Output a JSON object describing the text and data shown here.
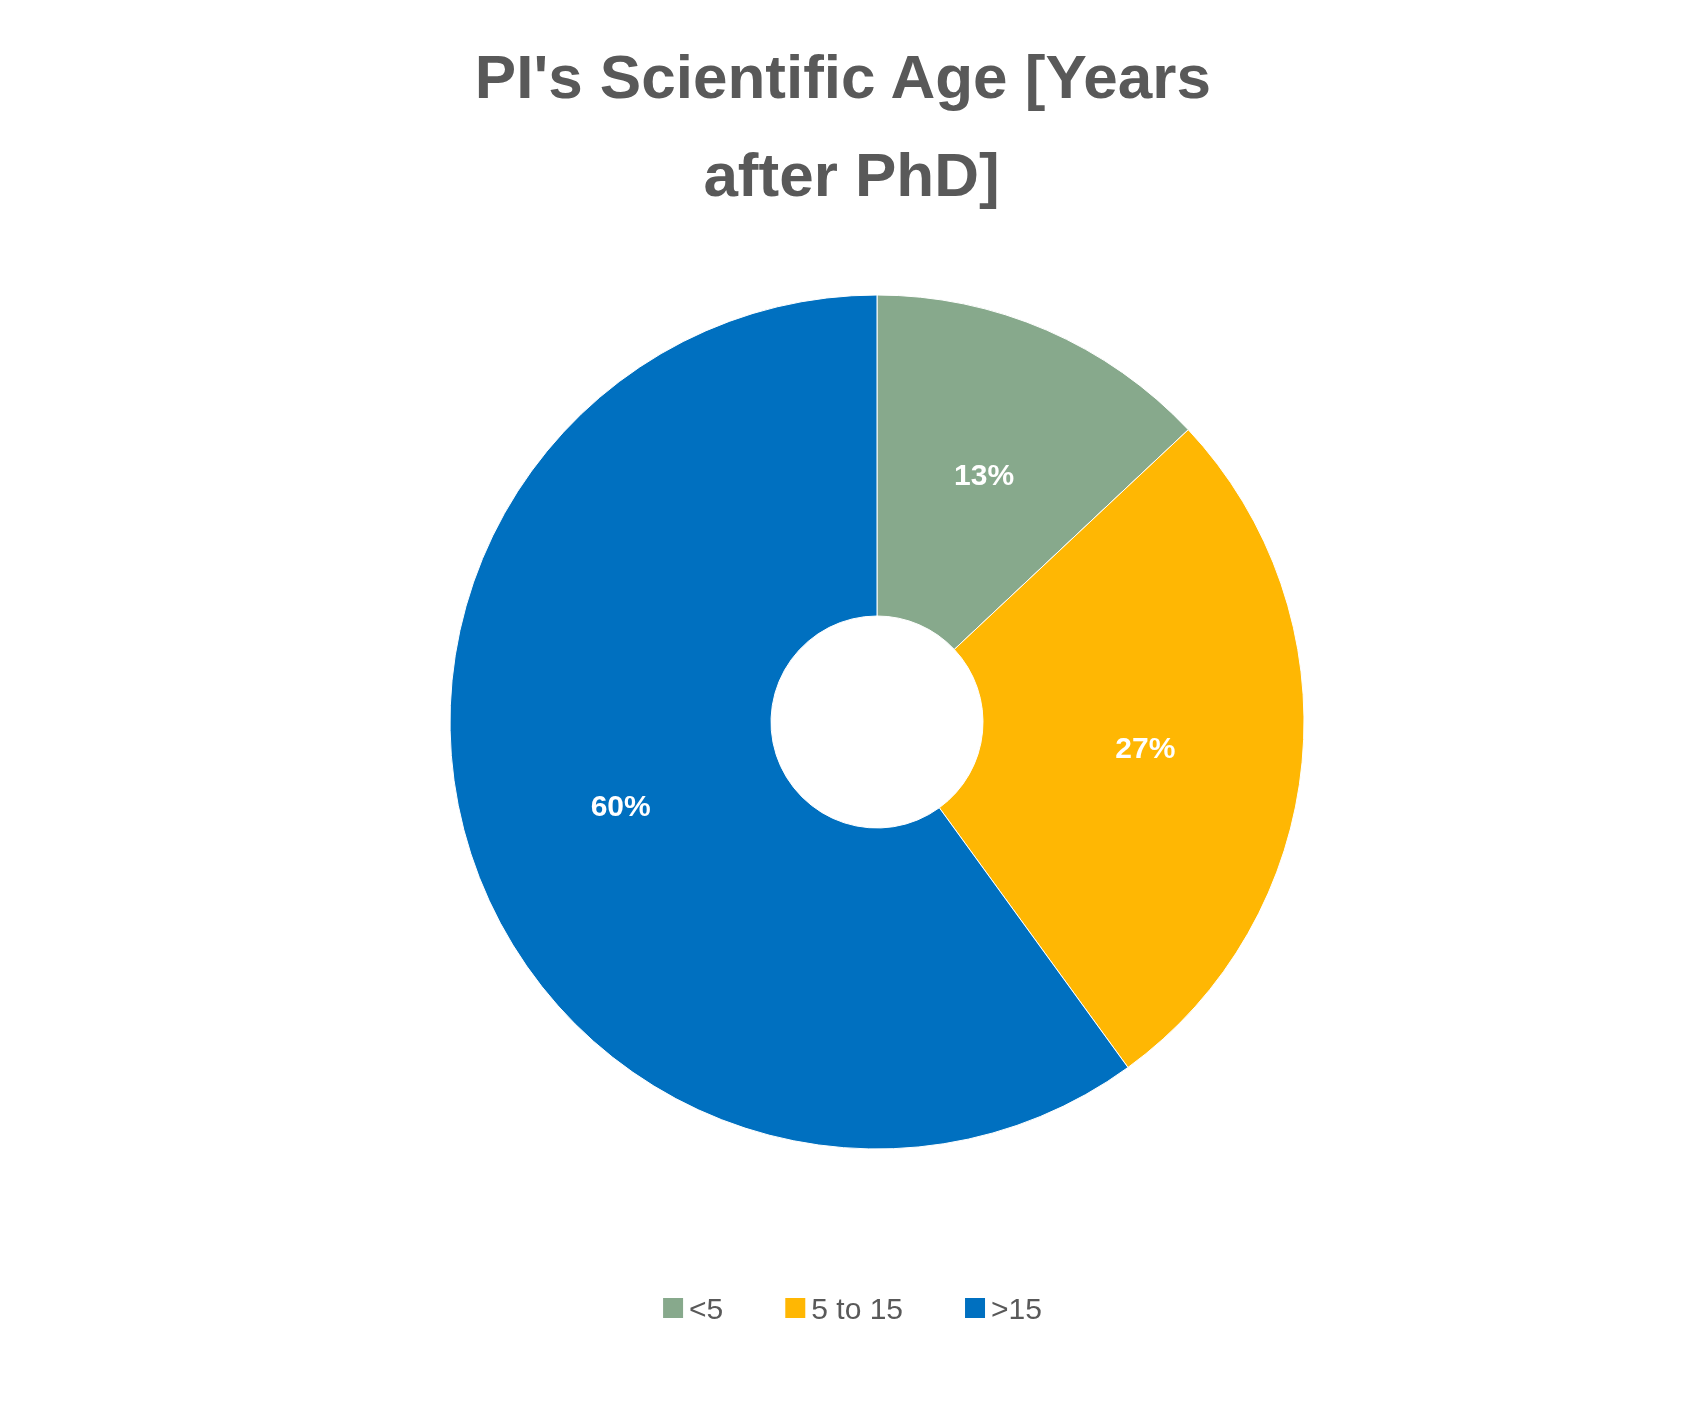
{
  "chart_data": {
    "type": "donut",
    "title": "PI's Scientific Age [Years after PhD]",
    "categories": [
      "<5",
      "5 to 15",
      ">15"
    ],
    "values": [
      13,
      27,
      60
    ],
    "colors": [
      "#87a98c",
      "#ffb703",
      "#0070c0"
    ],
    "value_labels": [
      "13%",
      "27%",
      "60%"
    ],
    "legend": "bottom"
  }
}
